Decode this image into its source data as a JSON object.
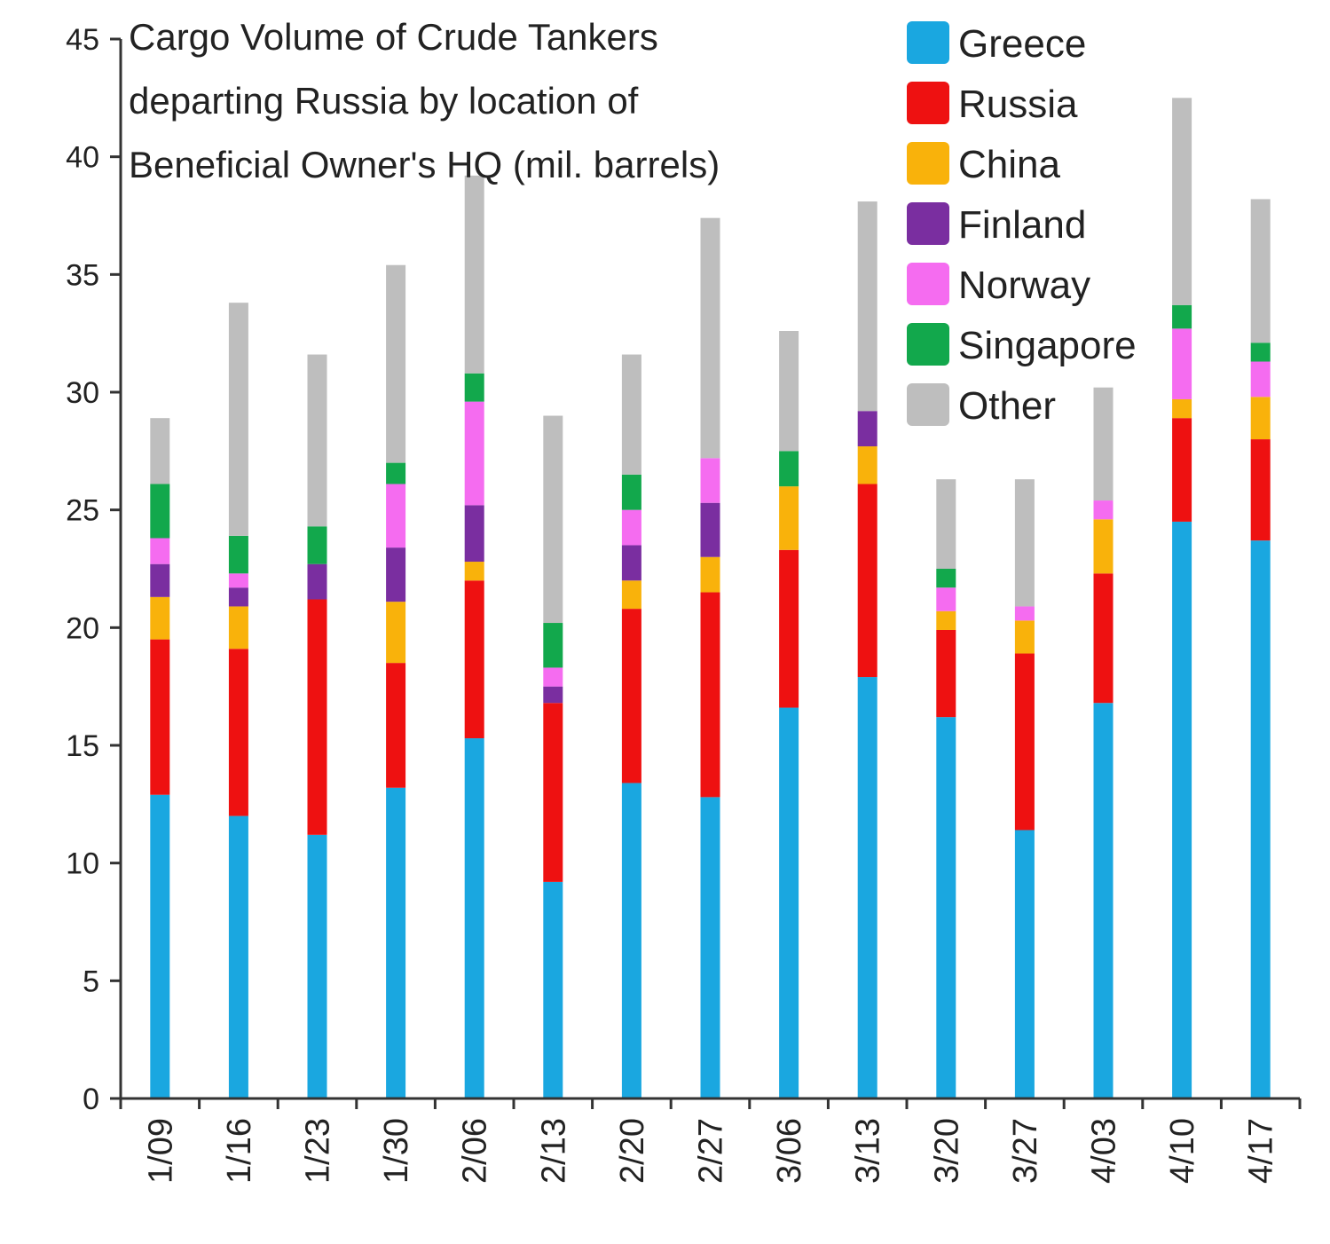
{
  "chart_data": {
    "type": "bar",
    "stacked": true,
    "title_lines": [
      "Cargo Volume of Crude Tankers",
      "departing Russia by location of",
      "Beneficial Owner's HQ (mil. barrels)"
    ],
    "xlabel": "",
    "ylabel": "",
    "ylim": [
      0,
      45
    ],
    "yticks": [
      "0",
      "5",
      "10",
      "15",
      "20",
      "25",
      "30",
      "35",
      "40",
      "45"
    ],
    "categories": [
      "1/09",
      "1/16",
      "1/23",
      "1/30",
      "2/06",
      "2/13",
      "2/20",
      "2/27",
      "3/06",
      "3/13",
      "3/20",
      "3/27",
      "4/03",
      "4/10",
      "4/17"
    ],
    "legend_position": "top-right",
    "grid": false,
    "series": [
      {
        "name": "Greece",
        "color": "#1aa7e0",
        "values": [
          12.9,
          12.0,
          11.2,
          13.2,
          15.3,
          9.2,
          13.4,
          12.8,
          16.6,
          17.9,
          16.2,
          11.4,
          16.8,
          24.5,
          23.7
        ]
      },
      {
        "name": "Russia",
        "color": "#ee1111",
        "values": [
          6.6,
          7.1,
          10.0,
          5.3,
          6.7,
          7.6,
          7.4,
          8.7,
          6.7,
          8.2,
          3.7,
          7.5,
          5.5,
          4.4,
          4.3
        ]
      },
      {
        "name": "China",
        "color": "#f9b20b",
        "values": [
          1.8,
          1.8,
          0.0,
          2.6,
          0.8,
          0.0,
          1.2,
          1.5,
          2.7,
          1.6,
          0.8,
          1.4,
          2.3,
          0.8,
          1.8
        ]
      },
      {
        "name": "Finland",
        "color": "#7a2ea0",
        "values": [
          1.4,
          0.8,
          1.5,
          2.3,
          2.4,
          0.7,
          1.5,
          2.3,
          0.0,
          1.5,
          0.0,
          0.0,
          0.0,
          0.0,
          0.0
        ]
      },
      {
        "name": "Norway",
        "color": "#f56cf0",
        "values": [
          1.1,
          0.6,
          0.0,
          2.7,
          4.4,
          0.8,
          1.5,
          1.9,
          0.0,
          0.0,
          1.0,
          0.6,
          0.8,
          3.0,
          1.5
        ]
      },
      {
        "name": "Singapore",
        "color": "#12a84c",
        "values": [
          2.3,
          1.6,
          1.6,
          0.9,
          1.2,
          1.9,
          1.5,
          0.0,
          1.5,
          0.0,
          0.8,
          0.0,
          0.0,
          1.0,
          0.8
        ]
      },
      {
        "name": "Other",
        "color": "#bebebe",
        "values": [
          2.8,
          9.9,
          7.3,
          8.4,
          8.4,
          8.8,
          5.1,
          10.2,
          5.1,
          8.9,
          3.8,
          5.4,
          4.8,
          8.8,
          6.1
        ]
      }
    ]
  }
}
